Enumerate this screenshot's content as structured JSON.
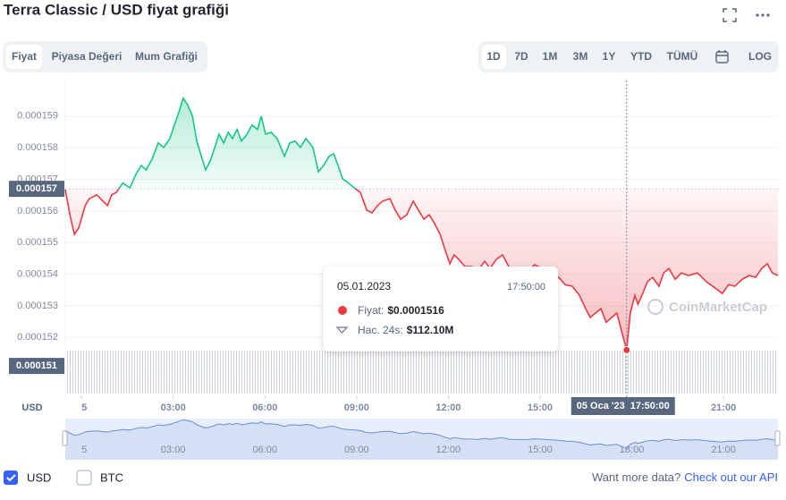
{
  "chart_data": {
    "type": "line",
    "title": "Terra Classic / USD fiyat grafiği",
    "x": [
      -0.53,
      -0.38,
      -0.23,
      -0.09,
      0.12,
      0.26,
      0.5,
      0.7,
      0.85,
      0.99,
      1.14,
      1.35,
      1.58,
      1.78,
      1.96,
      2.11,
      2.31,
      2.51,
      2.69,
      2.89,
      3.04,
      3.19,
      3.33,
      3.48,
      3.63,
      3.77,
      3.92,
      4.06,
      4.21,
      4.36,
      4.5,
      4.65,
      4.8,
      4.94,
      5.09,
      5.23,
      5.38,
      5.58,
      5.76,
      5.88,
      6.02,
      6.2,
      6.4,
      6.64,
      6.81,
      6.99,
      7.16,
      7.34,
      7.57,
      7.75,
      7.92,
      8.1,
      8.25,
      8.39,
      8.54,
      8.74,
      8.92,
      9.12,
      9.33,
      9.5,
      9.68,
      9.85,
      10.09,
      10.26,
      10.44,
      10.64,
      10.85,
      11.02,
      11.2,
      11.37,
      11.55,
      11.73,
      11.9,
      12.05,
      12.19,
      12.34,
      12.54,
      12.78,
      12.98,
      13.19,
      13.36,
      13.57,
      13.77,
      14.01,
      14.24,
      14.53,
      14.82,
      15.06,
      15.32,
      15.61,
      15.82,
      16.05,
      16.29,
      16.49,
      16.64,
      16.81,
      16.99,
      17.16,
      17.34,
      17.51,
      17.83,
      17.95,
      18.1,
      18.2,
      18.33,
      18.51,
      18.68,
      18.89,
      19.04,
      19.21,
      19.42,
      19.62,
      19.85,
      20.15,
      20.44,
      20.73,
      20.96,
      21.17,
      21.37,
      21.61,
      21.84,
      22.05,
      22.25,
      22.43,
      22.6,
      22.78
    ],
    "values": [
      0.00015668,
      0.00015588,
      0.00015526,
      0.00015546,
      0.00015617,
      0.00015639,
      0.00015651,
      0.00015631,
      0.00015617,
      0.00015651,
      0.00015659,
      0.00015688,
      0.00015673,
      0.00015716,
      0.00015744,
      0.0001573,
      0.00015764,
      0.00015815,
      0.00015801,
      0.00015829,
      0.00015872,
      0.00015914,
      0.00015957,
      0.00015934,
      0.000159,
      0.00015821,
      0.00015773,
      0.0001573,
      0.00015758,
      0.00015801,
      0.00015843,
      0.00015815,
      0.00015849,
      0.00015829,
      0.00015858,
      0.00015821,
      0.00015838,
      0.00015872,
      0.00015858,
      0.000159,
      0.00015843,
      0.00015849,
      0.00015829,
      0.00015773,
      0.00015815,
      0.00015821,
      0.00015801,
      0.00015829,
      0.00015801,
      0.00015724,
      0.00015744,
      0.00015773,
      0.00015781,
      0.00015744,
      0.00015702,
      0.00015688,
      0.00015673,
      0.00015659,
      0.00015603,
      0.00015594,
      0.00015617,
      0.00015631,
      0.00015639,
      0.00015603,
      0.00015574,
      0.00015588,
      0.00015631,
      0.00015603,
      0.00015574,
      0.00015588,
      0.0001556,
      0.00015526,
      0.00015475,
      0.00015433,
      0.00015461,
      0.00015447,
      0.00015424,
      0.00015424,
      0.00015413,
      0.00015441,
      0.00015418,
      0.00015447,
      0.00015461,
      0.00015418,
      0.00015413,
      0.00015404,
      0.0001543,
      0.00015418,
      0.00015404,
      0.0001539,
      0.00015367,
      0.00015362,
      0.00015333,
      0.00015291,
      0.00015263,
      0.00015277,
      0.00015291,
      0.00015248,
      0.00015263,
      0.00015277,
      0.0001516,
      0.00015277,
      0.00015333,
      0.00015305,
      0.00015333,
      0.00015376,
      0.0001539,
      0.00015362,
      0.00015404,
      0.00015418,
      0.00015384,
      0.00015404,
      0.00015396,
      0.00015404,
      0.00015376,
      0.00015356,
      0.00015339,
      0.00015367,
      0.00015362,
      0.00015384,
      0.00015396,
      0.0001539,
      0.00015418,
      0.00015433,
      0.00015404,
      0.00015396
    ],
    "up_color": "#16c784",
    "down_color": "#ea3943",
    "navigator_color": "#6b8fd6",
    "xlim": [
      -0.53,
      22.78
    ],
    "xticks": [
      {
        "value": 0,
        "label": "5"
      },
      {
        "value": 3,
        "label": "03:00"
      },
      {
        "value": 6,
        "label": "06:00"
      },
      {
        "value": 9,
        "label": "09:00"
      },
      {
        "value": 12,
        "label": "12:00"
      },
      {
        "value": 15,
        "label": "15:00"
      },
      {
        "value": 18,
        "label": "18:00"
      },
      {
        "value": 21,
        "label": "21:00"
      }
    ],
    "ylim": [
      0.00015,
      0.0001599
    ],
    "yticks": [
      0.000151,
      0.000152,
      0.000153,
      0.000154,
      0.000155,
      0.000156,
      0.000157,
      0.000158,
      0.000159
    ],
    "y_label": "USD",
    "grid": true,
    "baseline": {
      "value": 0.0001567,
      "label": "0.000157"
    },
    "pointer": {
      "value": 0.0001511,
      "label": "0.000151"
    },
    "crosshair_date": "05 Oca '23",
    "tooltip": {
      "date": "05.01.2023",
      "time": "17:50:00",
      "price_name": "Fiyat:",
      "price_label": "$0.0001516",
      "volume_name": "Hac. 24s:",
      "volume_label": "$112.10M"
    },
    "watermark": "CoinMarketCap"
  },
  "tabs": [
    "Fiyat",
    "Piyasa Değeri",
    "Mum Grafiği"
  ],
  "ranges": [
    "1D",
    "7D",
    "1M",
    "3M",
    "1Y",
    "YTD",
    "TÜMÜ"
  ],
  "log": "LOG",
  "currencies": [
    "USD",
    "BTC"
  ],
  "footer": {
    "text": "Want more data?",
    "link": "Check out our API"
  }
}
